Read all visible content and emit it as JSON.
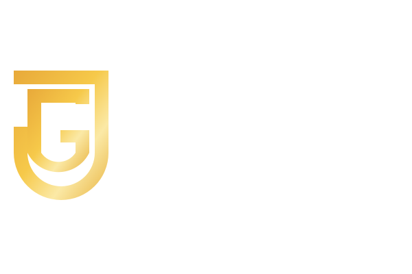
{
  "logo": {
    "name": "JG monogram",
    "colors": {
      "gold_dark": "#e8a93a",
      "gold_mid": "#f6c94a",
      "gold_light": "#fbe9a6",
      "background": "#ffffff"
    }
  }
}
